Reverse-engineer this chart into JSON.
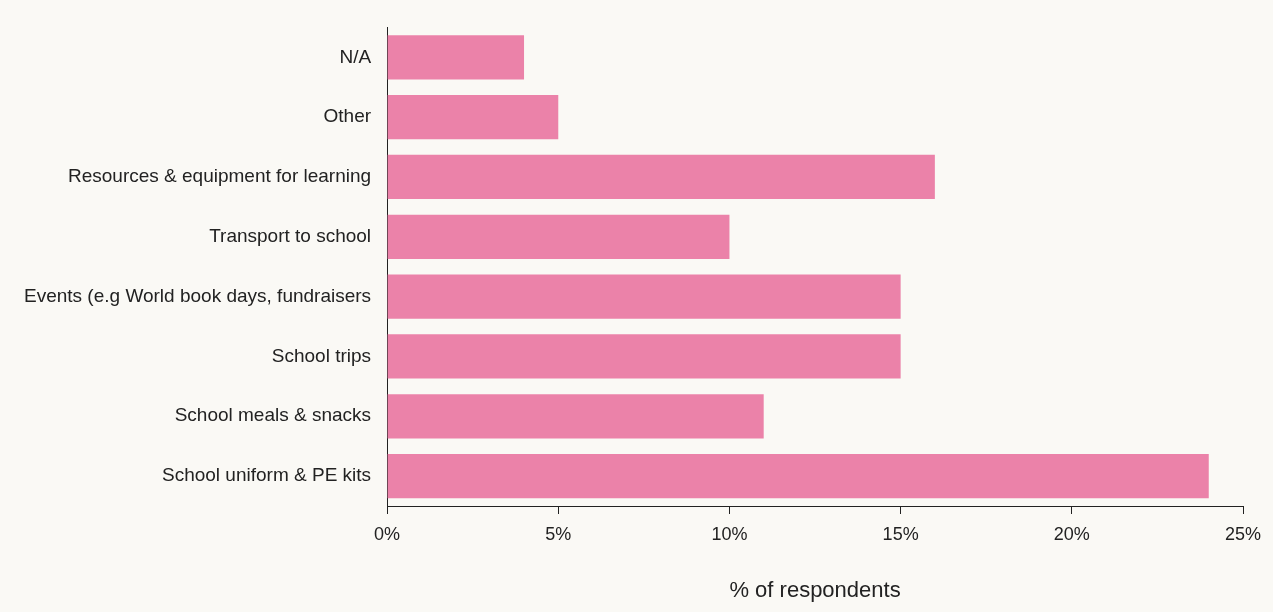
{
  "chart_data": {
    "type": "bar",
    "orientation": "horizontal",
    "xlabel": "% of respondents",
    "categories": [
      "N/A",
      "Other",
      "Resources & equipment for learning",
      "Transport to school",
      "Events (e.g World book days, fundraisers",
      "School trips",
      "School meals & snacks",
      "School uniform & PE kits"
    ],
    "values": [
      4,
      5,
      16,
      10,
      15,
      15,
      11,
      24
    ],
    "color": "#eb82a9",
    "xlim": [
      0,
      25
    ],
    "xticks": [
      {
        "value": 0,
        "label": "0%"
      },
      {
        "value": 5,
        "label": "5%"
      },
      {
        "value": 10,
        "label": "10%"
      },
      {
        "value": 15,
        "label": "15%"
      },
      {
        "value": 20,
        "label": "20%"
      },
      {
        "value": 25,
        "label": "25%"
      }
    ],
    "legend": false
  }
}
